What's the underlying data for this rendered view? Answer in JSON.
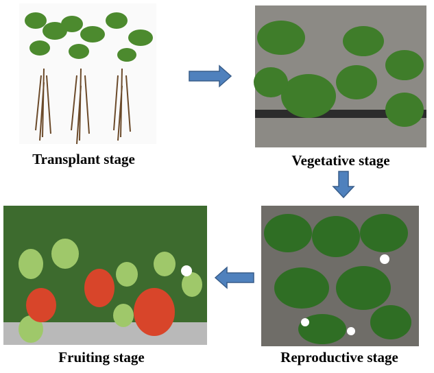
{
  "stages": [
    {
      "label": "Transplant stage"
    },
    {
      "label": "Vegetative stage"
    },
    {
      "label": "Reproductive stage"
    },
    {
      "label": "Fruiting stage"
    }
  ]
}
